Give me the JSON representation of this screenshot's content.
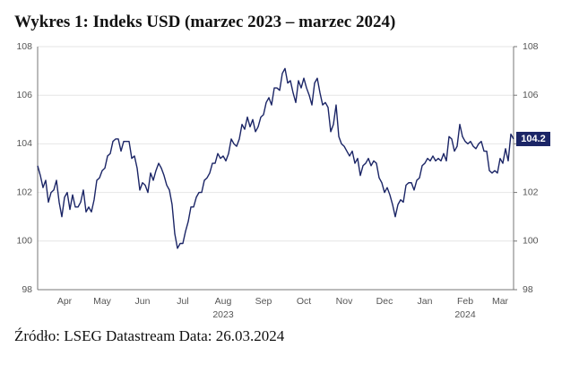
{
  "chart_data": {
    "type": "line",
    "title": "Wykres 1: Indeks USD (marzec 2023 – marzec 2024)",
    "source": "Źródło: LSEG Datastream Data: 26.03.2024",
    "categories": [
      null,
      null,
      null,
      null,
      null,
      null,
      null,
      null,
      null,
      null,
      "Apr",
      null,
      null,
      null,
      null,
      null,
      null,
      null,
      null,
      null,
      null,
      null,
      null,
      null,
      "May",
      null,
      null,
      null,
      null,
      null,
      null,
      null,
      null,
      null,
      null,
      null,
      null,
      null,
      null,
      "Jun",
      null,
      null,
      null,
      null,
      null,
      null,
      null,
      null,
      null,
      null,
      null,
      null,
      null,
      null,
      "Jul",
      null,
      null,
      null,
      null,
      null,
      null,
      null,
      null,
      null,
      null,
      null,
      null,
      null,
      null,
      "Aug",
      null,
      null,
      null,
      null,
      null,
      null,
      null,
      null,
      null,
      null,
      null,
      null,
      null,
      null,
      "Sep",
      null,
      null,
      null,
      null,
      null,
      null,
      null,
      null,
      null,
      null,
      null,
      null,
      null,
      null,
      "Oct",
      null,
      null,
      null,
      null,
      null,
      null,
      null,
      null,
      null,
      null,
      null,
      null,
      null,
      null,
      "Nov",
      null,
      null,
      null,
      null,
      null,
      null,
      null,
      null,
      null,
      null,
      null,
      null,
      null,
      null,
      "Dec",
      null,
      null,
      null,
      null,
      null,
      null,
      null,
      null,
      null,
      null,
      null,
      null,
      null,
      null,
      "Jan",
      null,
      null,
      null,
      null,
      null,
      null,
      null,
      null,
      null,
      null,
      null,
      null,
      null,
      null,
      "Feb",
      null,
      null,
      null,
      null,
      null,
      null,
      null,
      null,
      null,
      null,
      null,
      null,
      "Mar",
      null,
      null,
      null,
      null,
      null
    ],
    "category_years": [
      null,
      null,
      null,
      null,
      null,
      null,
      null,
      null,
      null,
      null,
      null,
      null,
      null,
      null,
      null,
      null,
      null,
      null,
      null,
      null,
      null,
      null,
      null,
      null,
      null,
      null,
      null,
      null,
      null,
      null,
      null,
      null,
      null,
      null,
      null,
      null,
      null,
      null,
      null,
      null,
      null,
      null,
      null,
      null,
      null,
      null,
      null,
      null,
      null,
      null,
      null,
      null,
      null,
      null,
      null,
      null,
      null,
      null,
      null,
      null,
      null,
      null,
      null,
      null,
      null,
      null,
      null,
      null,
      null,
      "2023",
      null,
      null,
      null,
      null,
      null,
      null,
      null,
      null,
      null,
      null,
      null,
      null,
      null,
      null,
      null,
      null,
      null,
      null,
      null,
      null,
      null,
      null,
      null,
      null,
      null,
      null,
      null,
      null,
      null,
      null,
      null,
      null,
      null,
      null,
      null,
      null,
      null,
      null,
      null,
      null,
      null,
      null,
      null,
      null,
      null,
      null,
      null,
      null,
      null,
      null,
      null,
      null,
      null,
      null,
      null,
      null,
      null,
      null,
      null,
      null,
      null,
      null,
      null,
      null,
      null,
      null,
      null,
      null,
      null,
      null,
      null,
      null,
      null,
      null,
      null,
      null,
      null,
      null,
      null,
      null,
      null,
      null,
      null,
      null,
      null,
      null,
      null,
      null,
      null,
      "2024",
      null,
      null,
      null,
      null,
      null,
      null,
      null,
      null,
      null,
      null,
      null,
      null,
      null,
      null,
      null,
      null,
      null,
      null
    ],
    "series": [
      {
        "color": "#1b2566",
        "values": [
          103.1,
          102.7,
          102.2,
          102.5,
          101.6,
          102.0,
          102.1,
          102.5,
          101.6,
          101.0,
          101.8,
          102.0,
          101.3,
          101.9,
          101.4,
          101.4,
          101.6,
          102.1,
          101.2,
          101.4,
          101.2,
          101.7,
          102.5,
          102.6,
          102.9,
          103.0,
          103.5,
          103.6,
          104.1,
          104.2,
          104.2,
          103.7,
          104.1,
          104.1,
          104.1,
          103.4,
          103.5,
          103.0,
          102.1,
          102.4,
          102.3,
          102.0,
          102.8,
          102.5,
          102.9,
          103.2,
          103.0,
          102.7,
          102.3,
          102.1,
          101.5,
          100.3,
          99.7,
          99.9,
          99.9,
          100.4,
          100.8,
          101.4,
          101.4,
          101.8,
          102.0,
          102.0,
          102.5,
          102.6,
          102.8,
          103.2,
          103.2,
          103.6,
          103.4,
          103.5,
          103.3,
          103.6,
          104.2,
          104.0,
          103.9,
          104.2,
          104.8,
          104.6,
          105.1,
          104.7,
          105.0,
          104.5,
          104.7,
          105.1,
          105.2,
          105.7,
          105.9,
          105.6,
          106.3,
          106.3,
          106.2,
          106.9,
          107.1,
          106.5,
          106.6,
          106.1,
          105.7,
          106.6,
          106.3,
          106.7,
          106.3,
          106.0,
          105.6,
          106.5,
          106.7,
          106.1,
          105.6,
          105.7,
          105.5,
          104.5,
          104.8,
          105.6,
          104.3,
          104.0,
          103.9,
          103.7,
          103.5,
          103.7,
          103.2,
          103.4,
          102.7,
          103.1,
          103.2,
          103.4,
          103.1,
          103.3,
          103.2,
          102.6,
          102.4,
          102.0,
          102.2,
          101.9,
          101.5,
          101.0,
          101.5,
          101.7,
          101.6,
          102.3,
          102.4,
          102.4,
          102.1,
          102.5,
          102.6,
          103.1,
          103.2,
          103.4,
          103.3,
          103.5,
          103.3,
          103.4,
          103.3,
          103.6,
          103.3,
          104.3,
          104.2,
          103.7,
          103.9,
          104.8,
          104.3,
          104.1,
          104.0,
          104.1,
          103.9,
          103.8,
          104.0,
          104.1,
          103.7,
          103.7,
          102.9,
          102.8,
          102.9,
          102.8,
          103.4,
          103.2,
          103.8,
          103.3,
          104.4,
          104.2
        ],
        "last_label": "104.2"
      }
    ],
    "ylim": [
      98,
      108
    ],
    "yticks": [
      98,
      100,
      102,
      104,
      106,
      108
    ],
    "y2lim": [
      98,
      108
    ],
    "y2ticks": [
      98,
      100,
      102,
      104,
      106,
      108
    ],
    "grid": true
  }
}
